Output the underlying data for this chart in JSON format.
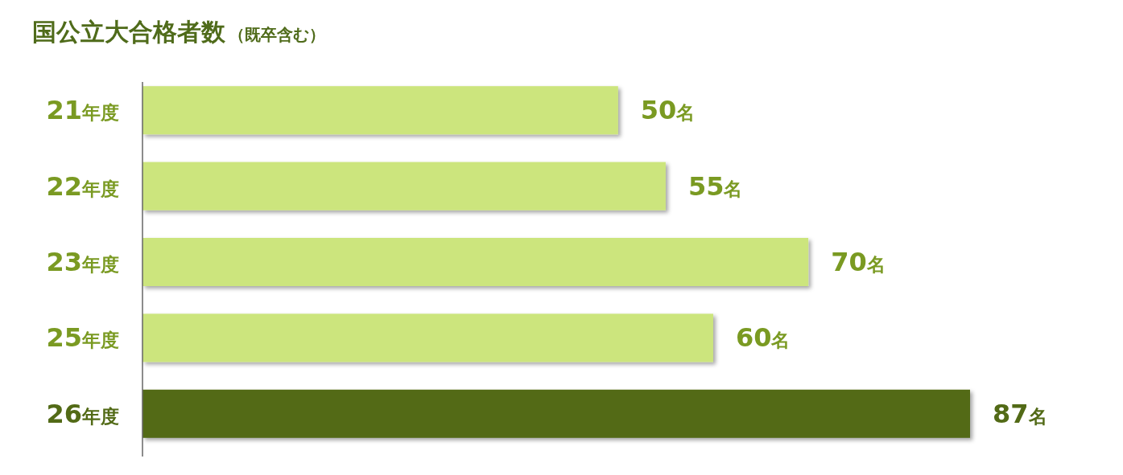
{
  "chart_data": {
    "type": "bar",
    "orientation": "horizontal",
    "title": "国公立大合格者数",
    "subtitle": "（既卒含む）",
    "categories": [
      "21年度",
      "22年度",
      "23年度",
      "25年度",
      "26年度"
    ],
    "values": [
      50,
      55,
      70,
      60,
      87
    ],
    "colors": [
      "#cce57d",
      "#cce57d",
      "#cce57d",
      "#cce57d",
      "#526a16"
    ],
    "value_labels": [
      "50名",
      "55名",
      "70名",
      "60名",
      "87名"
    ]
  }
}
